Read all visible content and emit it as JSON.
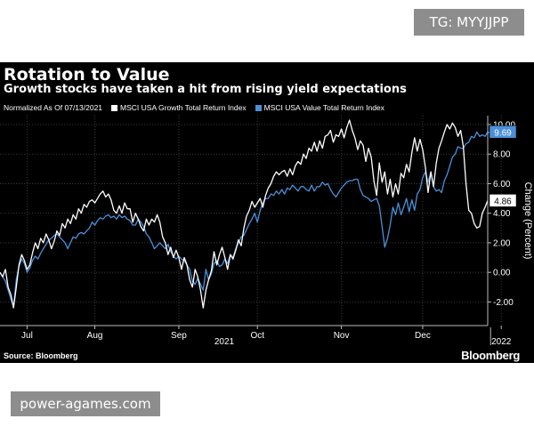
{
  "overlay_tag": "TG: MYYJJPP",
  "footer_watermark": "power-agames.com",
  "chart_data": {
    "type": "line",
    "title": "Rotation to Value",
    "subtitle": "Growth stocks have taken a hit from rising yield expectations",
    "note": "Normalized As Of 07/13/2021",
    "ylabel": "Change (Percent)",
    "source": "Source: Bloomberg",
    "brand": "Bloomberg",
    "ylim": [
      -3.6,
      10.6
    ],
    "y_ticks": [
      -2.0,
      0.0,
      2.0,
      4.0,
      6.0,
      8.0,
      10.0
    ],
    "y_tick_labels": [
      "-2.00",
      "0.00",
      "2.00",
      "4.00",
      "6.00",
      "8.00",
      "10.00"
    ],
    "x_ticks": [
      {
        "label": "Jul",
        "index": 10
      },
      {
        "label": "Aug",
        "index": 35
      },
      {
        "label": "Sep",
        "index": 66
      },
      {
        "label": "Oct",
        "index": 95
      },
      {
        "label": "Nov",
        "index": 126
      },
      {
        "label": "Dec",
        "index": 156
      },
      {
        "label": "2022",
        "index": 185
      }
    ],
    "x_year_label": "2021",
    "grid": true,
    "legend_position": "top-left",
    "last_value_labels": [
      {
        "value": "9.69",
        "color": "#4a90d9"
      },
      {
        "value": "4.86",
        "color": "#ffffff"
      }
    ],
    "series": [
      {
        "name": "MSCI USA Growth Total Return Index",
        "color": "#ffffff",
        "values": [
          0.0,
          -0.3,
          0.2,
          -1.0,
          -1.5,
          -2.4,
          -1.0,
          0.5,
          1.2,
          0.8,
          0.2,
          0.5,
          1.3,
          2.0,
          1.6,
          2.3,
          2.0,
          2.6,
          2.2,
          1.6,
          2.1,
          2.8,
          2.5,
          3.3,
          3.0,
          3.6,
          3.3,
          3.9,
          3.6,
          4.3,
          4.0,
          4.6,
          4.4,
          4.8,
          4.9,
          4.7,
          5.0,
          5.3,
          5.5,
          5.1,
          5.3,
          4.9,
          4.2,
          4.0,
          4.5,
          4.0,
          4.7,
          4.3,
          4.3,
          3.4,
          4.0,
          3.6,
          3.1,
          2.8,
          3.6,
          3.2,
          3.6,
          3.4,
          3.9,
          3.4,
          2.4,
          2.0,
          1.2,
          1.7,
          1.0,
          1.5,
          1.0,
          0.2,
          1.0,
          0.5,
          -0.5,
          -1.0,
          0.2,
          -0.3,
          -1.2,
          -2.4,
          -1.2,
          -0.5,
          0.1,
          1.4,
          0.5,
          1.2,
          1.7,
          1.0,
          0.2,
          1.2,
          0.9,
          1.5,
          2.2,
          1.8,
          3.0,
          3.8,
          4.2,
          4.8,
          4.4,
          4.7,
          5.0,
          4.4,
          5.2,
          5.7,
          6.0,
          6.5,
          6.8,
          6.6,
          6.8,
          6.9,
          6.5,
          7.0,
          6.6,
          7.2,
          7.5,
          7.3,
          8.0,
          7.7,
          8.4,
          8.2,
          8.8,
          8.2,
          8.9,
          8.4,
          9.2,
          9.3,
          9.6,
          8.8,
          9.3,
          9.2,
          9.7,
          9.1,
          9.8,
          10.3,
          9.6,
          9.1,
          8.3,
          8.9,
          8.6,
          7.5,
          8.4,
          7.8,
          6.2,
          5.2,
          7.4,
          6.1,
          6.8,
          5.3,
          6.3,
          5.1,
          6.0,
          5.3,
          6.7,
          6.4,
          7.3,
          6.8,
          8.1,
          9.1,
          8.2,
          9.0,
          8.3,
          7.1,
          5.4,
          6.8,
          5.8,
          7.4,
          8.4,
          8.9,
          9.5,
          10.0,
          9.7,
          10.1,
          9.8,
          9.2,
          9.6,
          8.5,
          6.0,
          4.2,
          4.0,
          3.3,
          3.0,
          3.1,
          4.0,
          4.4,
          4.86
        ]
      },
      {
        "name": "MSCI USA Value Total Return Index",
        "color": "#4a90d9",
        "values": [
          0.0,
          -0.3,
          -0.6,
          -1.2,
          -1.8,
          -2.3,
          -0.5,
          0.4,
          0.9,
          0.6,
          0.0,
          0.3,
          0.8,
          1.1,
          0.9,
          1.3,
          1.6,
          1.9,
          2.2,
          2.3,
          2.5,
          2.6,
          2.4,
          2.2,
          2.0,
          1.6,
          2.0,
          2.4,
          2.3,
          2.6,
          2.7,
          2.6,
          2.8,
          3.0,
          3.4,
          3.2,
          3.5,
          3.7,
          3.6,
          3.8,
          3.9,
          3.7,
          3.8,
          3.6,
          3.9,
          3.7,
          3.8,
          3.6,
          3.5,
          3.2,
          3.2,
          3.6,
          3.4,
          3.1,
          2.6,
          2.4,
          2.0,
          1.6,
          1.8,
          2.0,
          1.8,
          1.6,
          1.9,
          1.4,
          1.1,
          0.9,
          1.1,
          0.9,
          0.8,
          0.5,
          0.2,
          -0.6,
          -0.8,
          -0.4,
          -0.8,
          -1.2,
          0.2,
          -0.5,
          -0.1,
          0.6,
          0.8,
          0.4,
          0.5,
          0.9,
          0.6,
          1.2,
          1.0,
          1.6,
          2.0,
          2.4,
          2.5,
          2.9,
          3.3,
          3.6,
          4.0,
          3.4,
          4.2,
          4.7,
          5.0,
          5.0,
          5.3,
          5.2,
          5.5,
          5.3,
          5.6,
          5.3,
          5.7,
          5.6,
          5.9,
          5.7,
          5.5,
          5.8,
          5.8,
          5.6,
          5.5,
          5.9,
          5.5,
          5.8,
          5.8,
          6.1,
          5.9,
          6.0,
          5.6,
          5.3,
          5.1,
          5.4,
          5.7,
          5.9,
          6.1,
          6.2,
          6.2,
          6.3,
          6.3,
          5.6,
          5.2,
          5.1,
          5.0,
          4.8,
          4.9,
          5.0,
          4.5,
          3.1,
          1.7,
          2.3,
          3.2,
          4.4,
          3.9,
          4.7,
          3.9,
          4.4,
          5.0,
          4.1,
          4.9,
          4.2,
          5.3,
          5.6,
          6.4,
          6.8,
          6.1,
          6.8,
          5.8,
          5.5,
          5.6,
          5.4,
          6.2,
          6.6,
          7.2,
          7.8,
          8.0,
          8.5,
          8.4,
          8.4,
          8.7,
          8.8,
          9.2,
          9.1,
          9.5,
          9.2,
          9.3,
          9.2,
          9.5,
          9.4,
          9.5,
          9.6,
          9.69
        ]
      }
    ]
  }
}
